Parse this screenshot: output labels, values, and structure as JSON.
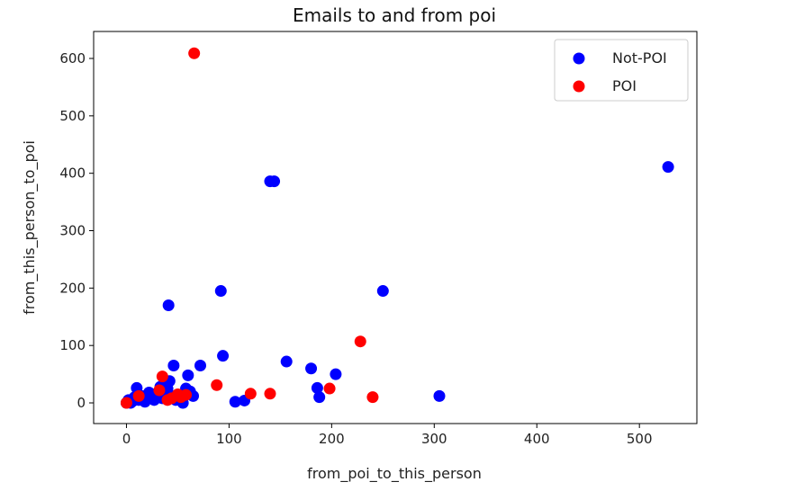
{
  "chart_data": {
    "type": "scatter",
    "title": "Emails to and from poi",
    "xlabel": "from_poi_to_this_person",
    "ylabel": "from_this_person_to_poi",
    "xlim": [
      -32,
      556
    ],
    "ylim": [
      -36,
      647
    ],
    "xticks": [
      0,
      100,
      200,
      300,
      400,
      500
    ],
    "yticks": [
      0,
      100,
      200,
      300,
      400,
      500,
      600
    ],
    "grid": false,
    "legend_position": "top-right",
    "series": [
      {
        "name": "Not-POI",
        "color": "#0000ff",
        "points": [
          [
            0,
            0
          ],
          [
            2,
            5
          ],
          [
            4,
            0
          ],
          [
            6,
            3
          ],
          [
            8,
            10
          ],
          [
            10,
            26
          ],
          [
            12,
            5
          ],
          [
            15,
            12
          ],
          [
            18,
            2
          ],
          [
            20,
            8
          ],
          [
            22,
            18
          ],
          [
            25,
            15
          ],
          [
            27,
            5
          ],
          [
            30,
            10
          ],
          [
            33,
            28
          ],
          [
            35,
            8
          ],
          [
            38,
            18
          ],
          [
            40,
            25
          ],
          [
            42,
            38
          ],
          [
            44,
            12
          ],
          [
            46,
            65
          ],
          [
            48,
            5
          ],
          [
            50,
            12
          ],
          [
            52,
            8
          ],
          [
            55,
            0
          ],
          [
            58,
            25
          ],
          [
            60,
            48
          ],
          [
            62,
            20
          ],
          [
            65,
            12
          ],
          [
            72,
            65
          ],
          [
            94,
            82
          ],
          [
            106,
            2
          ],
          [
            115,
            4
          ],
          [
            156,
            72
          ],
          [
            180,
            60
          ],
          [
            186,
            26
          ],
          [
            188,
            10
          ],
          [
            204,
            50
          ],
          [
            305,
            12
          ],
          [
            41,
            170
          ],
          [
            92,
            195
          ],
          [
            140,
            386
          ],
          [
            144,
            386
          ],
          [
            250,
            195
          ],
          [
            528,
            411
          ]
        ]
      },
      {
        "name": "POI",
        "color": "#ff0000",
        "points": [
          [
            0,
            0
          ],
          [
            12,
            12
          ],
          [
            32,
            22
          ],
          [
            35,
            46
          ],
          [
            40,
            5
          ],
          [
            44,
            8
          ],
          [
            50,
            15
          ],
          [
            53,
            10
          ],
          [
            58,
            14
          ],
          [
            88,
            31
          ],
          [
            121,
            16
          ],
          [
            140,
            16
          ],
          [
            198,
            25
          ],
          [
            228,
            107
          ],
          [
            240,
            10
          ],
          [
            66,
            609
          ]
        ]
      }
    ]
  }
}
